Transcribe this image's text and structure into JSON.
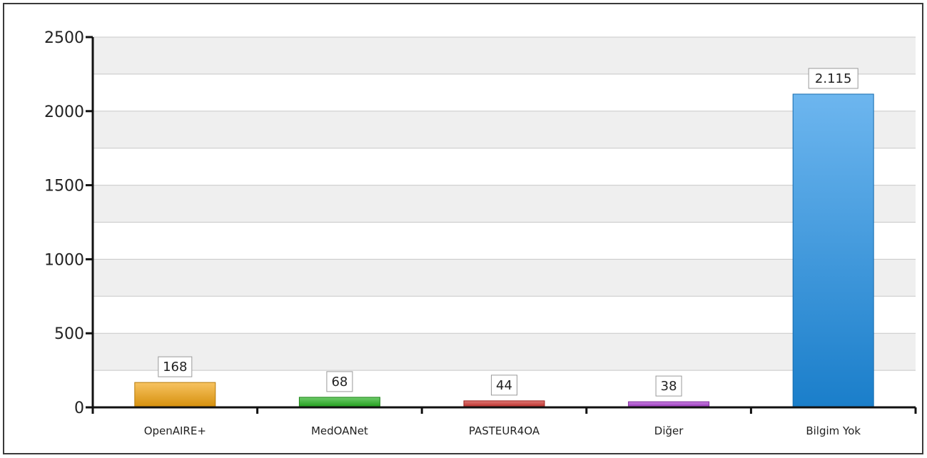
{
  "chart_data": {
    "type": "bar",
    "categories": [
      "OpenAIRE+",
      "MedOANet",
      "PASTEUR4OA",
      "Diğer",
      "Bilgim Yok"
    ],
    "values": [
      168,
      68,
      44,
      38,
      2115
    ],
    "data_labels": [
      "168",
      "68",
      "44",
      "38",
      "2.115"
    ],
    "colors": [
      "#f2a20c",
      "#22b01c",
      "#d0302a",
      "#a93ad0",
      "#1e8fe6"
    ],
    "ylim": [
      0,
      2500
    ],
    "yticks": [
      0,
      500,
      1000,
      1500,
      2000,
      2500
    ],
    "title": "",
    "xlabel": "",
    "ylabel": "",
    "grid": true,
    "legend": "none"
  }
}
